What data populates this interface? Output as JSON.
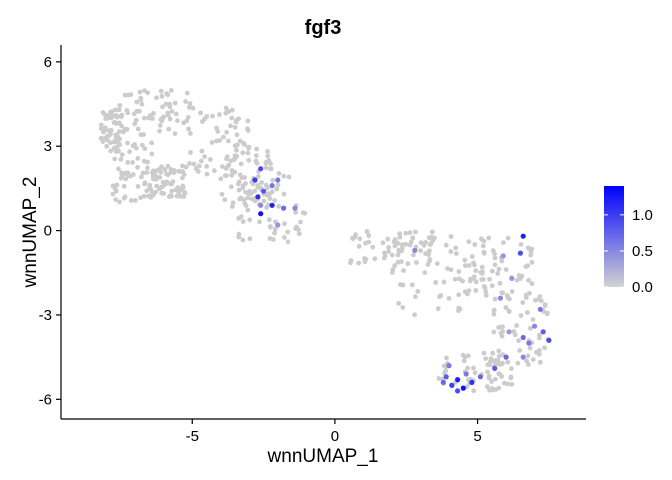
{
  "chart_data": {
    "type": "scatter",
    "title": "fgf3",
    "xlabel": "wnnUMAP_1",
    "ylabel": "wnnUMAP_2",
    "xlim": [
      -9.6,
      8.8
    ],
    "ylim": [
      -6.7,
      6.6
    ],
    "xticks": [
      -5,
      0,
      5
    ],
    "xtick_labels": [
      "-5",
      "0",
      "5"
    ],
    "yticks": [
      -6,
      -3,
      0,
      3,
      6
    ],
    "ytick_labels": [
      "-6",
      "-3",
      "0",
      "3",
      "6"
    ],
    "grid": false,
    "legend": {
      "position": "right",
      "type": "colorbar",
      "ticks": [
        0.0,
        0.5,
        1.0
      ],
      "tick_labels": [
        "0.0",
        "0.5",
        "1.0"
      ],
      "range": [
        0.0,
        1.4
      ],
      "color_low": "#d3d3d3",
      "color_high": "#0000ff"
    },
    "point_color": "#cccccc",
    "n_background_points": 720,
    "background_regions": [
      {
        "x": [
          -8.2,
          -7.4
        ],
        "y": [
          2.8,
          4.3
        ]
      },
      {
        "x": [
          -7.6,
          -5.0
        ],
        "y": [
          3.4,
          5.0
        ]
      },
      {
        "x": [
          -5.2,
          -3.0
        ],
        "y": [
          2.0,
          4.4
        ]
      },
      {
        "x": [
          -7.8,
          -6.3
        ],
        "y": [
          1.0,
          3.2
        ]
      },
      {
        "x": [
          -6.5,
          -5.2
        ],
        "y": [
          1.2,
          2.3
        ]
      },
      {
        "x": [
          -4.0,
          -2.2
        ],
        "y": [
          0.8,
          3.0
        ]
      },
      {
        "x": [
          -3.4,
          -1.0
        ],
        "y": [
          -0.4,
          2.2
        ]
      },
      {
        "x": [
          0.5,
          3.5
        ],
        "y": [
          -1.2,
          0.0
        ]
      },
      {
        "x": [
          2.0,
          5.5
        ],
        "y": [
          -3.0,
          -0.1
        ]
      },
      {
        "x": [
          4.5,
          7.0
        ],
        "y": [
          -2.4,
          -0.2
        ]
      },
      {
        "x": [
          5.5,
          7.5
        ],
        "y": [
          -4.8,
          -2.3
        ]
      },
      {
        "x": [
          3.6,
          6.2
        ],
        "y": [
          -5.7,
          -4.3
        ]
      }
    ],
    "expressing_points": [
      {
        "x": -2.6,
        "y": 2.2,
        "value": 0.9
      },
      {
        "x": -2.8,
        "y": 1.8,
        "value": 1.0
      },
      {
        "x": -2.5,
        "y": 1.4,
        "value": 0.8
      },
      {
        "x": -2.7,
        "y": 1.2,
        "value": 1.1
      },
      {
        "x": -2.2,
        "y": 1.6,
        "value": 0.6
      },
      {
        "x": -2.6,
        "y": 0.9,
        "value": 0.5
      },
      {
        "x": -2.2,
        "y": 0.9,
        "value": 1.2
      },
      {
        "x": -2.6,
        "y": 0.6,
        "value": 1.3
      },
      {
        "x": -1.8,
        "y": 0.8,
        "value": 0.7
      },
      {
        "x": -2.0,
        "y": 0.2,
        "value": 0.4
      },
      {
        "x": -1.4,
        "y": 0.8,
        "value": 0.5
      },
      {
        "x": -2.0,
        "y": 1.8,
        "value": 0.6
      },
      {
        "x": 2.8,
        "y": -0.7,
        "value": 0.5
      },
      {
        "x": 5.9,
        "y": -0.9,
        "value": 0.4
      },
      {
        "x": 6.6,
        "y": -0.2,
        "value": 1.2
      },
      {
        "x": 6.5,
        "y": -0.8,
        "value": 0.9
      },
      {
        "x": 5.8,
        "y": -2.4,
        "value": 0.5
      },
      {
        "x": 6.2,
        "y": -1.7,
        "value": 0.4
      },
      {
        "x": 7.2,
        "y": -2.8,
        "value": 0.6
      },
      {
        "x": 7.0,
        "y": -3.4,
        "value": 0.5
      },
      {
        "x": 7.3,
        "y": -3.6,
        "value": 0.8
      },
      {
        "x": 6.6,
        "y": -3.8,
        "value": 0.7
      },
      {
        "x": 6.1,
        "y": -3.6,
        "value": 0.4
      },
      {
        "x": 7.5,
        "y": -3.9,
        "value": 0.9
      },
      {
        "x": 6.0,
        "y": -4.5,
        "value": 0.7
      },
      {
        "x": 6.6,
        "y": -4.5,
        "value": 0.5
      },
      {
        "x": 5.6,
        "y": -4.9,
        "value": 0.8
      },
      {
        "x": 5.1,
        "y": -5.2,
        "value": 0.7
      },
      {
        "x": 4.0,
        "y": -4.8,
        "value": 0.6
      },
      {
        "x": 3.9,
        "y": -5.2,
        "value": 0.8
      },
      {
        "x": 4.1,
        "y": -5.5,
        "value": 1.0
      },
      {
        "x": 4.3,
        "y": -5.3,
        "value": 1.2
      },
      {
        "x": 4.5,
        "y": -5.6,
        "value": 1.3
      },
      {
        "x": 4.3,
        "y": -5.7,
        "value": 0.9
      },
      {
        "x": 4.8,
        "y": -5.4,
        "value": 1.1
      },
      {
        "x": 4.6,
        "y": -5.1,
        "value": 0.6
      },
      {
        "x": 3.8,
        "y": -5.4,
        "value": 0.7
      },
      {
        "x": 6.8,
        "y": -4.0,
        "value": 0.6
      }
    ]
  }
}
